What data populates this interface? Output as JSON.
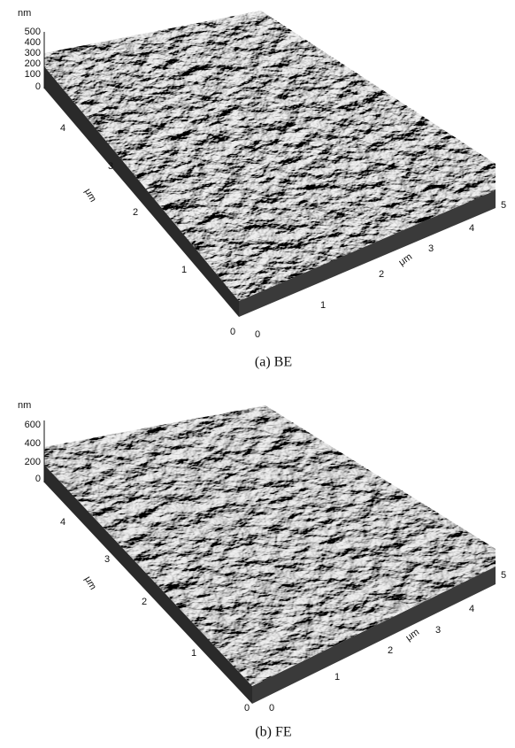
{
  "panels": [
    {
      "z_unit": "nm",
      "z_ticks": [
        "500",
        "400",
        "300",
        "200",
        "100",
        "0"
      ],
      "y_label": "μm",
      "y_ticks": [
        "4",
        "3",
        "2",
        "1",
        "0"
      ],
      "x_label": "μm",
      "x_ticks": [
        "0",
        "1",
        "2",
        "3",
        "4",
        "5"
      ],
      "caption": "(a)  BE"
    },
    {
      "z_unit": "nm",
      "z_ticks": [
        "600",
        "400",
        "200",
        "0"
      ],
      "y_label": "μm",
      "y_ticks": [
        "4",
        "3",
        "2",
        "1",
        "0"
      ],
      "x_label": "μm",
      "x_ticks": [
        "0",
        "1",
        "2",
        "3",
        "4",
        "5"
      ],
      "caption": "(b)  FE"
    }
  ]
}
